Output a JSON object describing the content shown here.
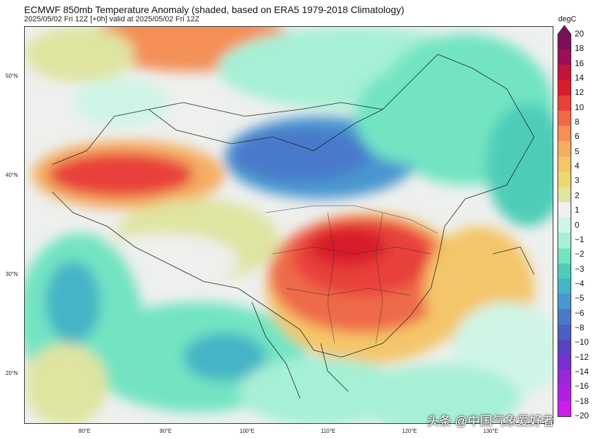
{
  "title": "ECMWF 850mb Temperature Anomaly (shaded, based on ERA5 1979-2018 Climatology)",
  "subtitle": "2025/05/02 Fri 12Z [+0h] valid at 2025/05/02 Fri 12Z",
  "lat_labels": [
    "50°N",
    "40°N",
    "30°N",
    "20°N"
  ],
  "lon_labels": [
    "80°E",
    "90°E",
    "100°E",
    "110°E",
    "120°E",
    "130°E"
  ],
  "colorbar": {
    "unit": "degC",
    "labels": [
      "20",
      "18",
      "16",
      "14",
      "12",
      "10",
      "8",
      "6",
      "5",
      "4",
      "3",
      "2",
      "1",
      "0",
      "−1",
      "−2",
      "−3",
      "−4",
      "−5",
      "−6",
      "−8",
      "−10",
      "−12",
      "−14",
      "−16",
      "−18",
      "−20"
    ],
    "colors": [
      "#7e0e5c",
      "#9c0f52",
      "#c2143a",
      "#d81e2c",
      "#e8413a",
      "#ef6a4a",
      "#f48f58",
      "#f5ad62",
      "#f4c66a",
      "#ecd96e",
      "#dfe4a0",
      "#eef0ee",
      "#cff5e6",
      "#a6f0d6",
      "#72e4c2",
      "#4ecdb8",
      "#45b4c6",
      "#4a96d0",
      "#4a79cb",
      "#4c5fc2",
      "#5a43c0",
      "#7a2fd0",
      "#9a27db",
      "#b21ee4",
      "#cd1ded"
    ]
  },
  "watermark": "头条 @中国气象爱好者"
}
